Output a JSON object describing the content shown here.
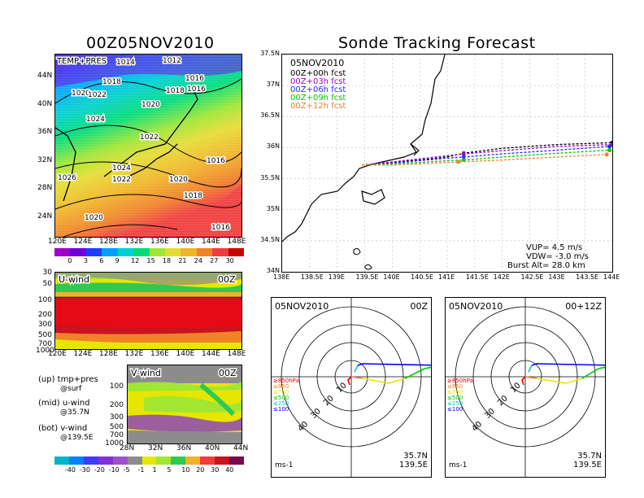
{
  "left_title": "00Z05NOV2010",
  "right_title": "Sonde Tracking Forecast",
  "temp_map": {
    "label": "TEMP+PRES",
    "lat_ticks": [
      "44N",
      "40N",
      "36N",
      "32N",
      "28N",
      "24N"
    ],
    "lon_ticks": [
      "120E",
      "124E",
      "128E",
      "132E",
      "136E",
      "140E",
      "144E",
      "148E"
    ],
    "isobars": [
      "1014",
      "1012",
      "1018",
      "1016",
      "1020",
      "1022",
      "1018",
      "1016",
      "1024",
      "1020",
      "1022",
      "1024",
      "1016",
      "1026",
      "1022",
      "1020",
      "1018",
      "1020",
      "1016"
    ],
    "colorbar_ticks": [
      "0",
      "3",
      "6",
      "9",
      "12",
      "15",
      "18",
      "21",
      "24",
      "27",
      "30"
    ],
    "colorbar_colors": [
      "#a000c8",
      "#6e00dc",
      "#1e3cff",
      "#00a0ff",
      "#00d0d0",
      "#00dc78",
      "#a0e632",
      "#e6dc32",
      "#f0b428",
      "#f08228",
      "#f03c3c",
      "#c80000"
    ]
  },
  "u_wind": {
    "label": "U-wind",
    "time": "00Z",
    "y_ticks": [
      "30",
      "50",
      "100",
      "200",
      "300",
      "500",
      "700",
      "1000"
    ],
    "x_ticks": [
      "120E",
      "124E",
      "128E",
      "132E",
      "136E",
      "140E",
      "144E",
      "148E"
    ]
  },
  "v_wind": {
    "label": "V-wind",
    "time": "00Z",
    "y_ticks": [
      "100",
      "200",
      "300",
      "500",
      "700",
      "1000"
    ],
    "x_ticks": [
      "28N",
      "32N",
      "36N",
      "40N",
      "44N"
    ]
  },
  "legend_notes": [
    {
      "line1": "(up) tmp+pres",
      "line2": "@surf"
    },
    {
      "line1": "(mid) u-wind",
      "line2": "@35.7N"
    },
    {
      "line1": "(bot) v-wind",
      "line2": "@139.5E"
    }
  ],
  "wind_colorbar": {
    "ticks": [
      "-40",
      "-30",
      "-20",
      "-10",
      "-5",
      "-1",
      "1",
      "5",
      "10",
      "20",
      "30",
      "40"
    ],
    "colors": [
      "#00b4c8",
      "#0080ff",
      "#3c3cff",
      "#8232d2",
      "#a050c8",
      "#8c8c8c",
      "#e6e600",
      "#a0e632",
      "#32c850",
      "#f0b428",
      "#f03c3c",
      "#c8141e",
      "#780a50"
    ]
  },
  "tracking_map": {
    "date": "05NOV2010",
    "lat_ticks": [
      "37.5N",
      "37N",
      "36.5N",
      "36N",
      "35.5N",
      "35N",
      "34.5N",
      "34N"
    ],
    "lon_ticks": [
      "138E",
      "138.5E",
      "139E",
      "139.5E",
      "140E",
      "140.5E",
      "141E",
      "141.5E",
      "142E",
      "142.5E",
      "143E",
      "143.5E",
      "144E"
    ],
    "forecasts": [
      {
        "label": "00Z+00h fcst",
        "color": "#000000"
      },
      {
        "label": "00Z+03h fcst",
        "color": "#a000c8"
      },
      {
        "label": "00Z+06h fcst",
        "color": "#2828ff"
      },
      {
        "label": "00Z+09h fcst",
        "color": "#00c800"
      },
      {
        "label": "00Z+12h fcst",
        "color": "#f08228"
      }
    ],
    "params": {
      "vup": "VUP= 4.5 m/s",
      "vdw": "VDW= -3.0 m/s",
      "burst": "Burst Alt= 28.0 km"
    }
  },
  "hodographs": [
    {
      "date": "05NOV2010",
      "time": "00Z",
      "lat": "35.7N",
      "lon": "139.5E",
      "unit": "ms-1"
    },
    {
      "date": "05NOV2010",
      "time": "00+12Z",
      "lat": "35.7N",
      "lon": "139.5E",
      "unit": "ms-1"
    }
  ],
  "hodo_rings": [
    "10",
    "20",
    "30",
    "40"
  ],
  "hodo_levels": [
    {
      "label": "≥850hPa",
      "color": "#e60000"
    },
    {
      "label": "≤850",
      "color": "#f08228"
    },
    {
      "label": "≤700",
      "color": "#e6e600"
    },
    {
      "label": "≤500",
      "color": "#00c800"
    },
    {
      "label": "≤250",
      "color": "#00c8c8"
    },
    {
      "label": "≤100",
      "color": "#0000ff"
    }
  ],
  "chart_data": [
    {
      "type": "line",
      "title": "Sonde Tracking Forecast",
      "x_unit": "deg E",
      "y_unit": "deg N",
      "xlim": [
        138,
        144
      ],
      "ylim": [
        34,
        37.5
      ],
      "series": [
        {
          "name": "00Z+00h fcst",
          "points": [
            [
              139.45,
              35.72
            ],
            [
              140.0,
              35.76
            ],
            [
              140.5,
              35.8
            ],
            [
              141.0,
              35.85
            ],
            [
              141.3,
              35.91
            ],
            [
              142.0,
              35.99
            ],
            [
              143.0,
              36.05
            ],
            [
              144.0,
              36.08
            ]
          ]
        },
        {
          "name": "00Z+03h fcst",
          "points": [
            [
              139.45,
              35.72
            ],
            [
              140.0,
              35.77
            ],
            [
              140.5,
              35.82
            ],
            [
              141.0,
              35.87
            ],
            [
              141.3,
              35.9
            ],
            [
              142.0,
              35.95
            ],
            [
              143.0,
              36.02
            ],
            [
              144.0,
              36.05
            ]
          ]
        },
        {
          "name": "00Z+06h fcst",
          "points": [
            [
              139.45,
              35.72
            ],
            [
              140.0,
              35.75
            ],
            [
              140.5,
              35.79
            ],
            [
              141.0,
              35.83
            ],
            [
              141.3,
              35.85
            ],
            [
              142.0,
              35.9
            ],
            [
              143.0,
              35.96
            ],
            [
              143.95,
              36.02
            ]
          ]
        },
        {
          "name": "00Z+09h fcst",
          "points": [
            [
              139.45,
              35.72
            ],
            [
              140.0,
              35.74
            ],
            [
              140.5,
              35.76
            ],
            [
              141.0,
              35.79
            ],
            [
              141.3,
              35.8
            ],
            [
              142.0,
              35.85
            ],
            [
              143.0,
              35.91
            ],
            [
              143.95,
              35.96
            ]
          ]
        },
        {
          "name": "00Z+12h fcst",
          "points": [
            [
              139.45,
              35.72
            ],
            [
              140.0,
              35.72
            ],
            [
              140.5,
              35.74
            ],
            [
              141.0,
              35.76
            ],
            [
              141.2,
              35.77
            ],
            [
              142.0,
              35.8
            ],
            [
              143.0,
              35.85
            ],
            [
              143.9,
              35.89
            ]
          ]
        }
      ]
    }
  ]
}
